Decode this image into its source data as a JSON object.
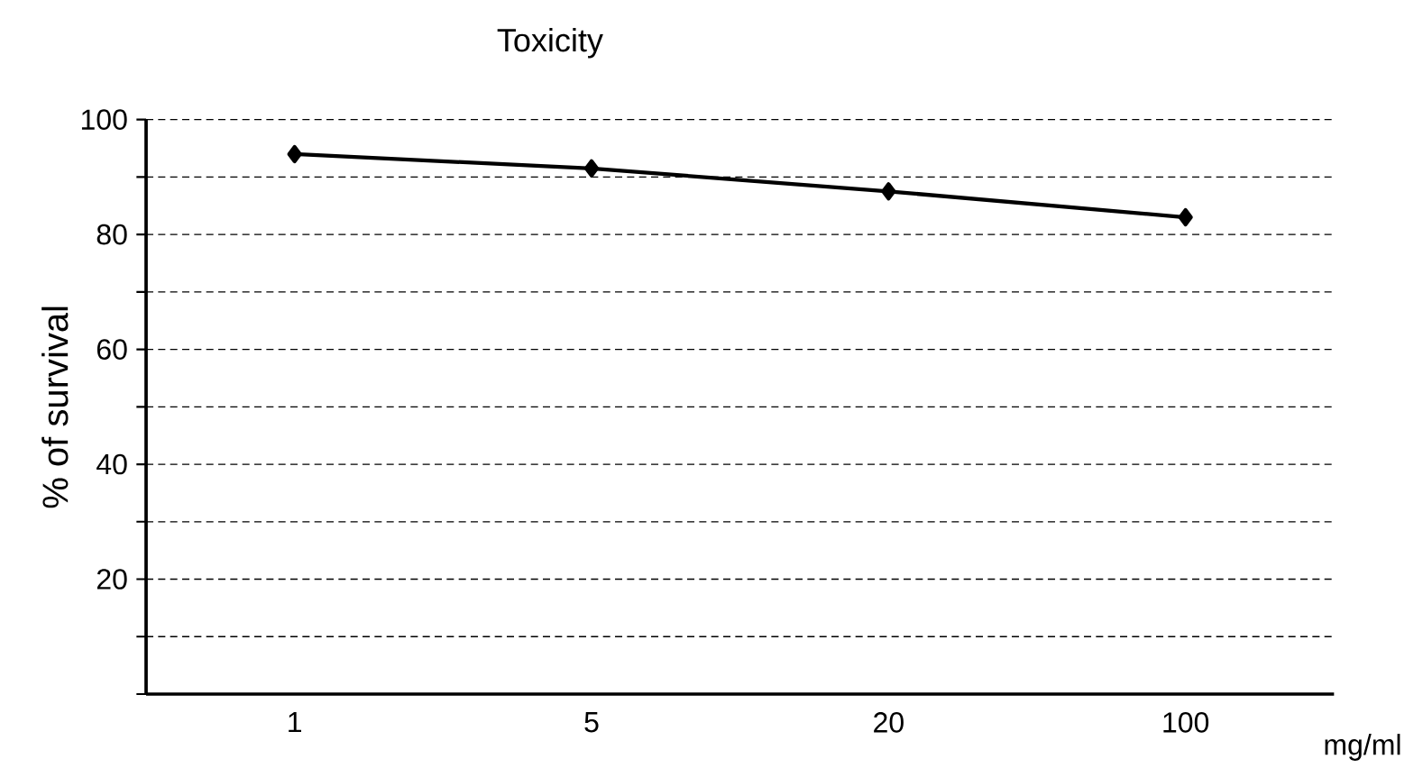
{
  "chart_data": {
    "type": "line",
    "title": "Toxicity",
    "xlabel": "mg/ml",
    "ylabel": "% of survival",
    "categories": [
      "1",
      "5",
      "20",
      "100"
    ],
    "series": [
      {
        "color": "#000000",
        "values": [
          94,
          91.5,
          87.5,
          83
        ]
      }
    ],
    "ylim": [
      0,
      100
    ],
    "yticks": [
      {
        "value": 0,
        "label": null
      },
      {
        "value": 10,
        "label": null
      },
      20,
      {
        "value": 30,
        "label": null
      },
      40,
      {
        "value": 50,
        "label": null
      },
      60,
      {
        "value": 70,
        "label": null
      },
      80,
      {
        "value": 90,
        "label": null
      },
      100
    ],
    "grid": "y",
    "legend": false,
    "marker": "diamond",
    "line_style": "solid"
  }
}
